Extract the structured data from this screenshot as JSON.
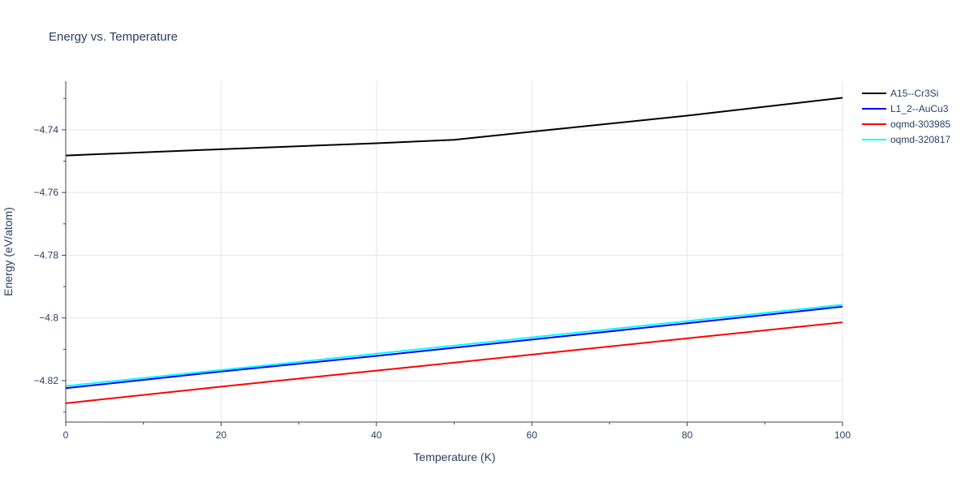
{
  "chart_data": {
    "type": "line",
    "title": "Energy vs. Temperature",
    "xlabel": "Temperature (K)",
    "ylabel": "Energy (eV/atom)",
    "xlim": [
      0,
      100
    ],
    "ylim": [
      -4.8332,
      -4.7245
    ],
    "x_ticks": [
      0,
      20,
      40,
      60,
      80,
      100
    ],
    "x_tick_labels": [
      "0",
      "20",
      "40",
      "60",
      "80",
      "100"
    ],
    "x_minor_ticks": [
      10,
      30,
      50,
      70,
      90
    ],
    "y_ticks": [
      -4.74,
      -4.76,
      -4.78,
      -4.8,
      -4.82
    ],
    "y_tick_labels": [
      "−4.74",
      "−4.76",
      "−4.78",
      "−4.8",
      "−4.82"
    ],
    "y_minor_ticks": [
      -4.73,
      -4.75,
      -4.77,
      -4.79,
      -4.81,
      -4.83
    ],
    "grid": true,
    "legend_position": "top-right",
    "series": [
      {
        "name": "A15--Cr3Si",
        "color": "#000000",
        "x": [
          0,
          20,
          40,
          50,
          60,
          80,
          100
        ],
        "y": [
          -4.7482,
          -4.7462,
          -4.7443,
          -4.7432,
          -4.7406,
          -4.7355,
          -4.7298
        ]
      },
      {
        "name": "L1_2--AuCu3",
        "color": "#0000ff",
        "x": [
          0,
          20,
          40,
          60,
          80,
          100
        ],
        "y": [
          -4.8224,
          -4.8171,
          -4.8121,
          -4.8069,
          -4.8017,
          -4.7964
        ]
      },
      {
        "name": "oqmd-303985",
        "color": "#ff0000",
        "x": [
          0,
          20,
          40,
          60,
          80,
          100
        ],
        "y": [
          -4.8272,
          -4.8219,
          -4.8168,
          -4.8117,
          -4.8065,
          -4.8014
        ]
      },
      {
        "name": "oqmd-320817",
        "color": "#00ffff",
        "x": [
          0,
          20,
          40,
          60,
          80,
          100
        ],
        "y": [
          -4.8217,
          -4.8166,
          -4.8114,
          -4.8062,
          -4.801,
          -4.7958
        ]
      }
    ]
  }
}
